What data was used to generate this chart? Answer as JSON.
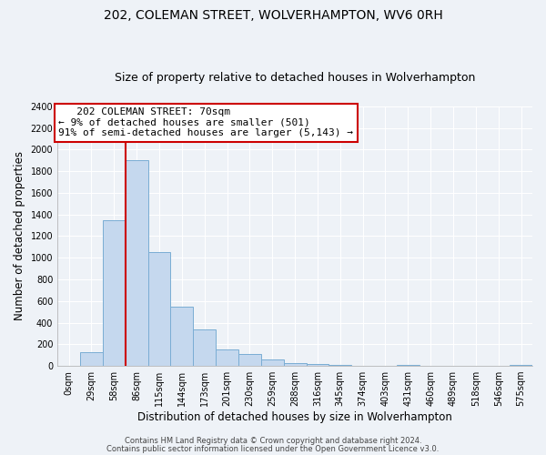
{
  "title": "202, COLEMAN STREET, WOLVERHAMPTON, WV6 0RH",
  "subtitle": "Size of property relative to detached houses in Wolverhampton",
  "xlabel": "Distribution of detached houses by size in Wolverhampton",
  "ylabel": "Number of detached properties",
  "bar_labels": [
    "0sqm",
    "29sqm",
    "58sqm",
    "86sqm",
    "115sqm",
    "144sqm",
    "173sqm",
    "201sqm",
    "230sqm",
    "259sqm",
    "288sqm",
    "316sqm",
    "345sqm",
    "374sqm",
    "403sqm",
    "431sqm",
    "460sqm",
    "489sqm",
    "518sqm",
    "546sqm",
    "575sqm"
  ],
  "bar_values": [
    0,
    125,
    1350,
    1900,
    1050,
    550,
    340,
    155,
    110,
    60,
    30,
    15,
    8,
    4,
    2,
    10,
    2,
    2,
    4,
    2,
    5
  ],
  "bar_color": "#c5d8ee",
  "bar_edge_color": "#7aadd4",
  "ylim": [
    0,
    2400
  ],
  "yticks": [
    0,
    200,
    400,
    600,
    800,
    1000,
    1200,
    1400,
    1600,
    1800,
    2000,
    2200,
    2400
  ],
  "annotation_line1": "   202 COLEMAN STREET: 70sqm",
  "annotation_line2": "← 9% of detached houses are smaller (501)",
  "annotation_line3": "91% of semi-detached houses are larger (5,143) →",
  "footer_line1": "Contains HM Land Registry data © Crown copyright and database right 2024.",
  "footer_line2": "Contains public sector information licensed under the Open Government Licence v3.0.",
  "background_color": "#eef2f7",
  "grid_color": "#ffffff",
  "title_fontsize": 10,
  "subtitle_fontsize": 9,
  "axis_label_fontsize": 8.5,
  "tick_fontsize": 7,
  "annotation_fontsize": 8,
  "footer_fontsize": 6
}
